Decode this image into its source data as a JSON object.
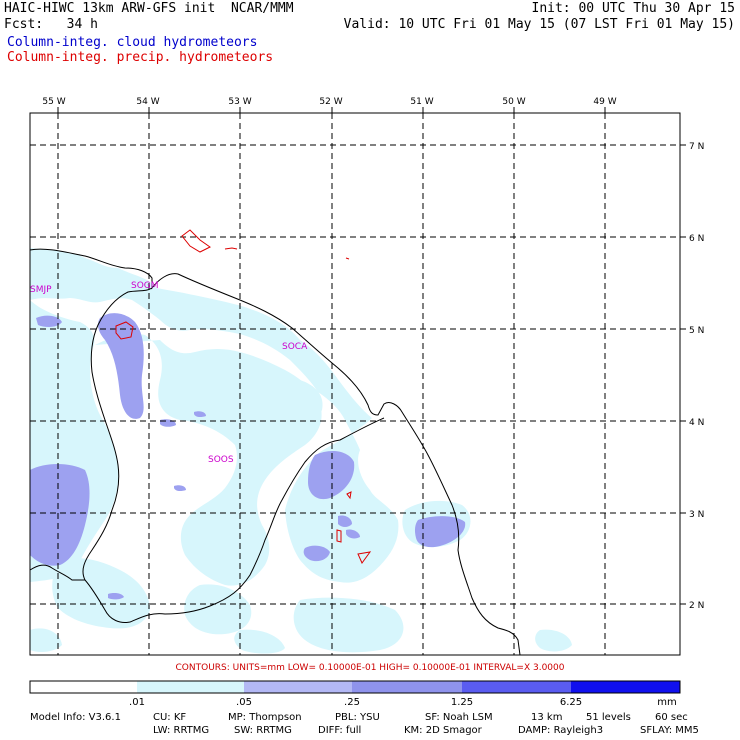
{
  "header": {
    "left_line1": "HAIC-HIWC 13km ARW-GFS init  NCAR/MMM",
    "left_line2": "Fcst:   34 h",
    "right_line1": "Init: 00 UTC Thu 30 Apr 15",
    "right_line2": "Valid: 10 UTC Fri 01 May 15 (07 LST Fri 01 May 15)",
    "legend_cloud": "Column-integ. cloud hydrometeors",
    "legend_precip": "Column-integ. precip. hydrometeors"
  },
  "colors": {
    "cloud_legend": "#0000cc",
    "precip_legend": "#dd0000",
    "shade_1": "#d7f6fc",
    "shade_2": "#b3b8f5",
    "shade_3": "#8f93ec",
    "shade_4": "#5a5cf0",
    "shade_5": "#1010ee",
    "station": "#cc00cc"
  },
  "map": {
    "lon_labels": [
      "55 W",
      "54 W",
      "53 W",
      "52 W",
      "51 W",
      "50 W",
      "49 W"
    ],
    "lat_labels": [
      "7 N",
      "6 N",
      "5 N",
      "4 N",
      "3 N",
      "2 N"
    ],
    "stations": [
      "SMJP",
      "SOGM",
      "SOCA",
      "SOOS"
    ]
  },
  "contour_info": "CONTOURS:  UNITS=mm  LOW= 0.10000E-01  HIGH= 0.10000E-01  INTERVAL=X  3.0000",
  "colorbar": {
    "ticks": [
      ".01",
      ".05",
      ".25",
      "1.25",
      "6.25"
    ],
    "unit": "mm"
  },
  "footer": {
    "model_info": "Model Info: V3.6.1",
    "cu": "CU: KF",
    "mp": "MP: Thompson",
    "pbl": "PBL: YSU",
    "sf": "SF: Noah LSM",
    "res": "13 km",
    "levels": "51 levels",
    "dt": "60 sec",
    "lw": "LW: RRTMG",
    "sw": "SW: RRTMG",
    "diff": "DIFF: full",
    "km": "KM: 2D Smagor",
    "damp": "DAMP: Rayleigh3",
    "sflay": "SFLAY: MM5"
  }
}
